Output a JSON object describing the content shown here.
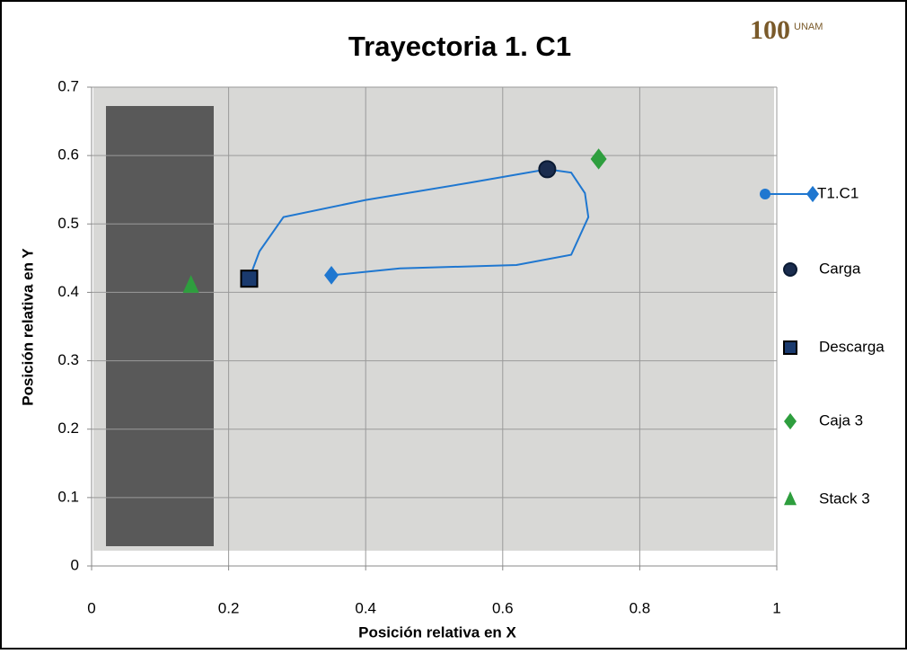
{
  "logo": {
    "number": "100",
    "text": "UNAM"
  },
  "chart_data": {
    "type": "scatter",
    "title": "Trayectoria 1. C1",
    "x_label": "Posición relativa en X",
    "y_label": "Posición relativa en Y",
    "xlim": [
      0,
      1
    ],
    "ylim": [
      0,
      0.7
    ],
    "xticks": [
      0,
      0.2,
      0.4,
      0.6,
      0.8,
      1
    ],
    "yticks": [
      0,
      0.1,
      0.2,
      0.3,
      0.4,
      0.5,
      0.6,
      0.7
    ],
    "grid": true,
    "legend": "right",
    "series": [
      {
        "name": "T1.C1",
        "color": "#1f77d0",
        "marker": "diamond",
        "line": true,
        "x": [
          0.23,
          0.245,
          0.28,
          0.4,
          0.55,
          0.665,
          0.7,
          0.72,
          0.725,
          0.7,
          0.62,
          0.45,
          0.35
        ],
        "y": [
          0.42,
          0.46,
          0.51,
          0.535,
          0.56,
          0.58,
          0.575,
          0.545,
          0.51,
          0.455,
          0.44,
          0.435,
          0.425
        ]
      },
      {
        "name": "Carga",
        "color": "#1a2c4e",
        "marker": "circle",
        "x": [
          0.665
        ],
        "y": [
          0.58
        ]
      },
      {
        "name": "Descarga",
        "color": "#1a3a6e",
        "marker": "square",
        "x": [
          0.23
        ],
        "y": [
          0.42
        ]
      },
      {
        "name": "Caja 3",
        "color": "#2e9e3e",
        "marker": "diamond",
        "x": [
          0.74
        ],
        "y": [
          0.595
        ]
      },
      {
        "name": "Stack 3",
        "color": "#2e9e3e",
        "marker": "triangle",
        "x": [
          0.145
        ],
        "y": [
          0.41
        ]
      }
    ]
  }
}
